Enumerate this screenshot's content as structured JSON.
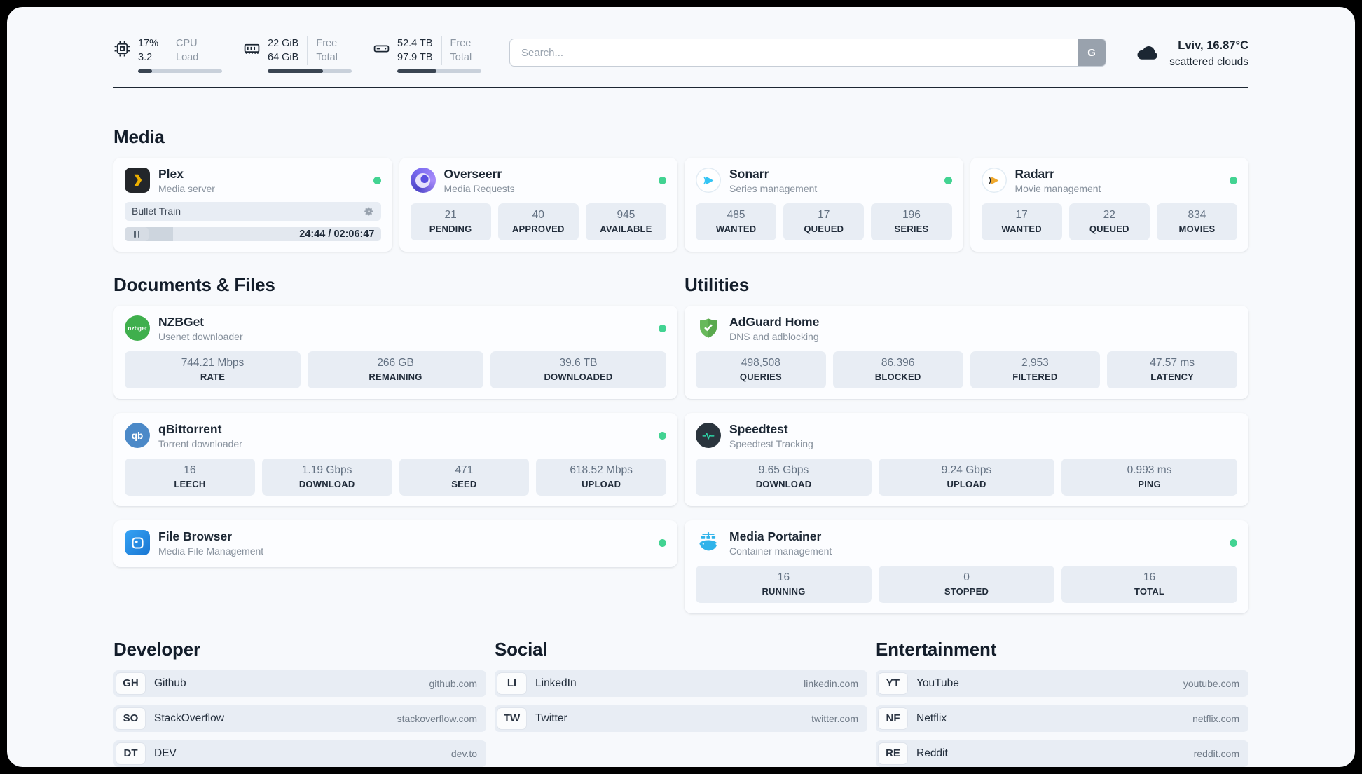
{
  "colors": {
    "status_online": "#42d392",
    "divider": "#1d2733",
    "plex_yellow": "#ebaf00",
    "adguard_green": "#68b95b",
    "speedtest_green": "#2dd4a7",
    "portainer_blue": "#2fb3ea"
  },
  "topbar": {
    "cpu": {
      "value1": "17%",
      "value2": "3.2",
      "label1": "CPU",
      "label2": "Load",
      "progress_percent": 17
    },
    "ram": {
      "value1": "22 GiB",
      "value2": "64 GiB",
      "label1": "Free",
      "label2": "Total",
      "progress_percent": 66
    },
    "disk": {
      "value1": "52.4 TB",
      "value2": "97.9 TB",
      "label1": "Free",
      "label2": "Total",
      "progress_percent": 47
    },
    "search": {
      "placeholder": "Search...",
      "engine_button": "G"
    },
    "weather": {
      "location": "Lviv, 16.87°C",
      "condition": "scattered clouds"
    }
  },
  "media": {
    "heading": "Media",
    "plex": {
      "title": "Plex",
      "subtitle": "Media server",
      "now_playing": "Bullet Train",
      "time": "24:44 / 02:06:47",
      "progress_percent": 19
    },
    "overseerr": {
      "title": "Overseerr",
      "subtitle": "Media Requests",
      "stats": [
        {
          "value": "21",
          "label": "PENDING"
        },
        {
          "value": "40",
          "label": "APPROVED"
        },
        {
          "value": "945",
          "label": "AVAILABLE"
        }
      ]
    },
    "sonarr": {
      "title": "Sonarr",
      "subtitle": "Series management",
      "stats": [
        {
          "value": "485",
          "label": "WANTED"
        },
        {
          "value": "17",
          "label": "QUEUED"
        },
        {
          "value": "196",
          "label": "SERIES"
        }
      ]
    },
    "radarr": {
      "title": "Radarr",
      "subtitle": "Movie management",
      "stats": [
        {
          "value": "17",
          "label": "WANTED"
        },
        {
          "value": "22",
          "label": "QUEUED"
        },
        {
          "value": "834",
          "label": "MOVIES"
        }
      ]
    }
  },
  "documents": {
    "heading": "Documents & Files",
    "nzbget": {
      "title": "NZBGet",
      "subtitle": "Usenet downloader",
      "icon_text": "nzbget",
      "stats": [
        {
          "value": "744.21 Mbps",
          "label": "RATE"
        },
        {
          "value": "266 GB",
          "label": "REMAINING"
        },
        {
          "value": "39.6 TB",
          "label": "DOWNLOADED"
        }
      ]
    },
    "qbittorrent": {
      "title": "qBittorrent",
      "subtitle": "Torrent downloader",
      "icon_text": "qb",
      "stats": [
        {
          "value": "16",
          "label": "LEECH"
        },
        {
          "value": "1.19 Gbps",
          "label": "DOWNLOAD"
        },
        {
          "value": "471",
          "label": "SEED"
        },
        {
          "value": "618.52 Mbps",
          "label": "UPLOAD"
        }
      ]
    },
    "filebrowser": {
      "title": "File Browser",
      "subtitle": "Media File Management"
    }
  },
  "utilities": {
    "heading": "Utilities",
    "adguard": {
      "title": "AdGuard Home",
      "subtitle": "DNS and adblocking",
      "stats": [
        {
          "value": "498,508",
          "label": "QUERIES"
        },
        {
          "value": "86,396",
          "label": "BLOCKED"
        },
        {
          "value": "2,953",
          "label": "FILTERED"
        },
        {
          "value": "47.57 ms",
          "label": "LATENCY"
        }
      ]
    },
    "speedtest": {
      "title": "Speedtest",
      "subtitle": "Speedtest Tracking",
      "stats": [
        {
          "value": "9.65 Gbps",
          "label": "DOWNLOAD"
        },
        {
          "value": "9.24 Gbps",
          "label": "UPLOAD"
        },
        {
          "value": "0.993 ms",
          "label": "PING"
        }
      ]
    },
    "portainer": {
      "title": "Media Portainer",
      "subtitle": "Container management",
      "stats": [
        {
          "value": "16",
          "label": "RUNNING"
        },
        {
          "value": "0",
          "label": "STOPPED"
        },
        {
          "value": "16",
          "label": "TOTAL"
        }
      ]
    }
  },
  "bookmarks": {
    "developer": {
      "heading": "Developer",
      "items": [
        {
          "abbr": "GH",
          "name": "Github",
          "url": "github.com"
        },
        {
          "abbr": "SO",
          "name": "StackOverflow",
          "url": "stackoverflow.com"
        },
        {
          "abbr": "DT",
          "name": "DEV",
          "url": "dev.to"
        }
      ]
    },
    "social": {
      "heading": "Social",
      "items": [
        {
          "abbr": "LI",
          "name": "LinkedIn",
          "url": "linkedin.com"
        },
        {
          "abbr": "TW",
          "name": "Twitter",
          "url": "twitter.com"
        }
      ]
    },
    "entertainment": {
      "heading": "Entertainment",
      "items": [
        {
          "abbr": "YT",
          "name": "YouTube",
          "url": "youtube.com"
        },
        {
          "abbr": "NF",
          "name": "Netflix",
          "url": "netflix.com"
        },
        {
          "abbr": "RE",
          "name": "Reddit",
          "url": "reddit.com"
        }
      ]
    }
  }
}
